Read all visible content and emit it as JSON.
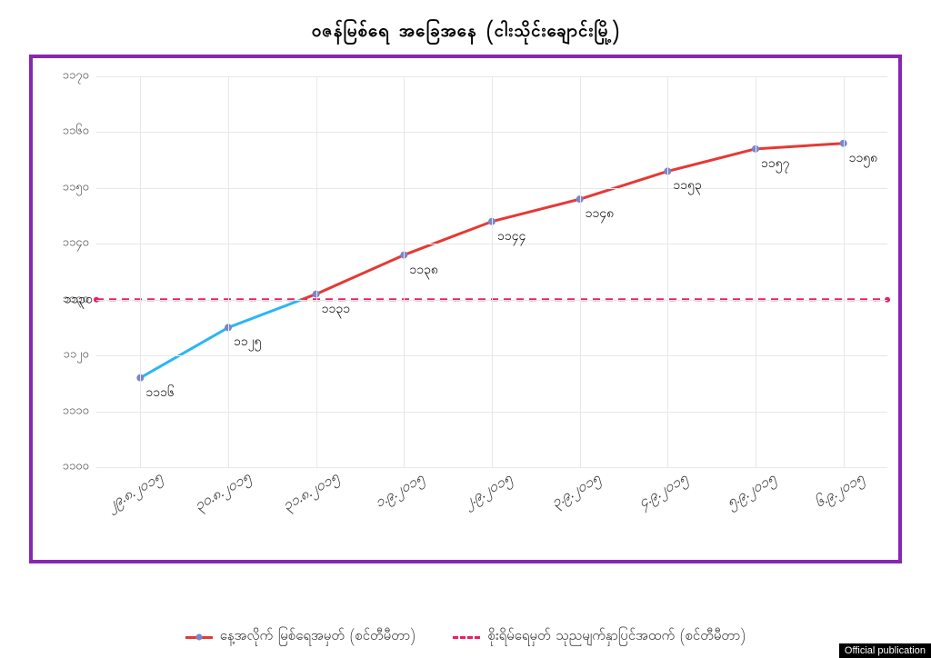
{
  "title": "ဝဇန်မြစ်ရေ အခြေအနေ (ငါးသိုင်းချောင်းမြို့)",
  "chart": {
    "type": "line",
    "frame_border_color": "#8826b3",
    "background_color": "#ffffff",
    "grid_color": "#e8e8e8",
    "ylim": [
      1100,
      1170
    ],
    "ytick_step": 10,
    "yticks": [
      1100,
      1110,
      1120,
      1130,
      1140,
      1150,
      1160,
      1170
    ],
    "ytick_labels": [
      "၁၁၀၀",
      "၁၁၁၀",
      "၁၁၂၀",
      "၁၁၃၀",
      "၁၁၄၀",
      "၁၁၅၀",
      "၁၁၆၀",
      "၁၁၇၀"
    ],
    "x_categories": [
      "၂၉.၈.၂၀၁၅",
      "၃၀.၈.၂၀၁၅",
      "၃၁.၈.၂၀၁၅",
      "၁.၉.၂၀၁၅",
      "၂.၉.၂၀၁၅",
      "၃.၉.၂၀၁၅",
      "၄.၉.၂၀၁၅",
      "၅.၉.၂၀၁၅",
      "၆.၉.၂၀၁၅"
    ],
    "danger_level": 1130,
    "danger_label": "၁၁၃၀",
    "danger_color": "#e91e63",
    "danger_dash": "8,6",
    "danger_width": 3,
    "series": {
      "values": [
        1116,
        1125,
        1131,
        1138,
        1144,
        1148,
        1153,
        1157,
        1158
      ],
      "labels": [
        "၁၁၁၆",
        "၁၁၂၅",
        "၁၁၃၁",
        "၁၁၃၈",
        "၁၁၄၄",
        "၁၁၄၈",
        "၁၁၅၃",
        "၁၁၅၇",
        "၁၁၅၈"
      ],
      "color_below": "#29b6f6",
      "color_above": "#e53935",
      "line_width": 3,
      "marker_color": "#7986cb",
      "marker_radius": 4
    },
    "legend": {
      "series_label": "နေ့အလိုက် မြစ်ရေအမှတ် (စင်တီမီတာ)",
      "danger_label": "စိုးရိမ်ရေမှတ် သုညမျက်နှာပြင်အထက် (စင်တီမီတာ)"
    }
  },
  "watermark": "Official publication"
}
